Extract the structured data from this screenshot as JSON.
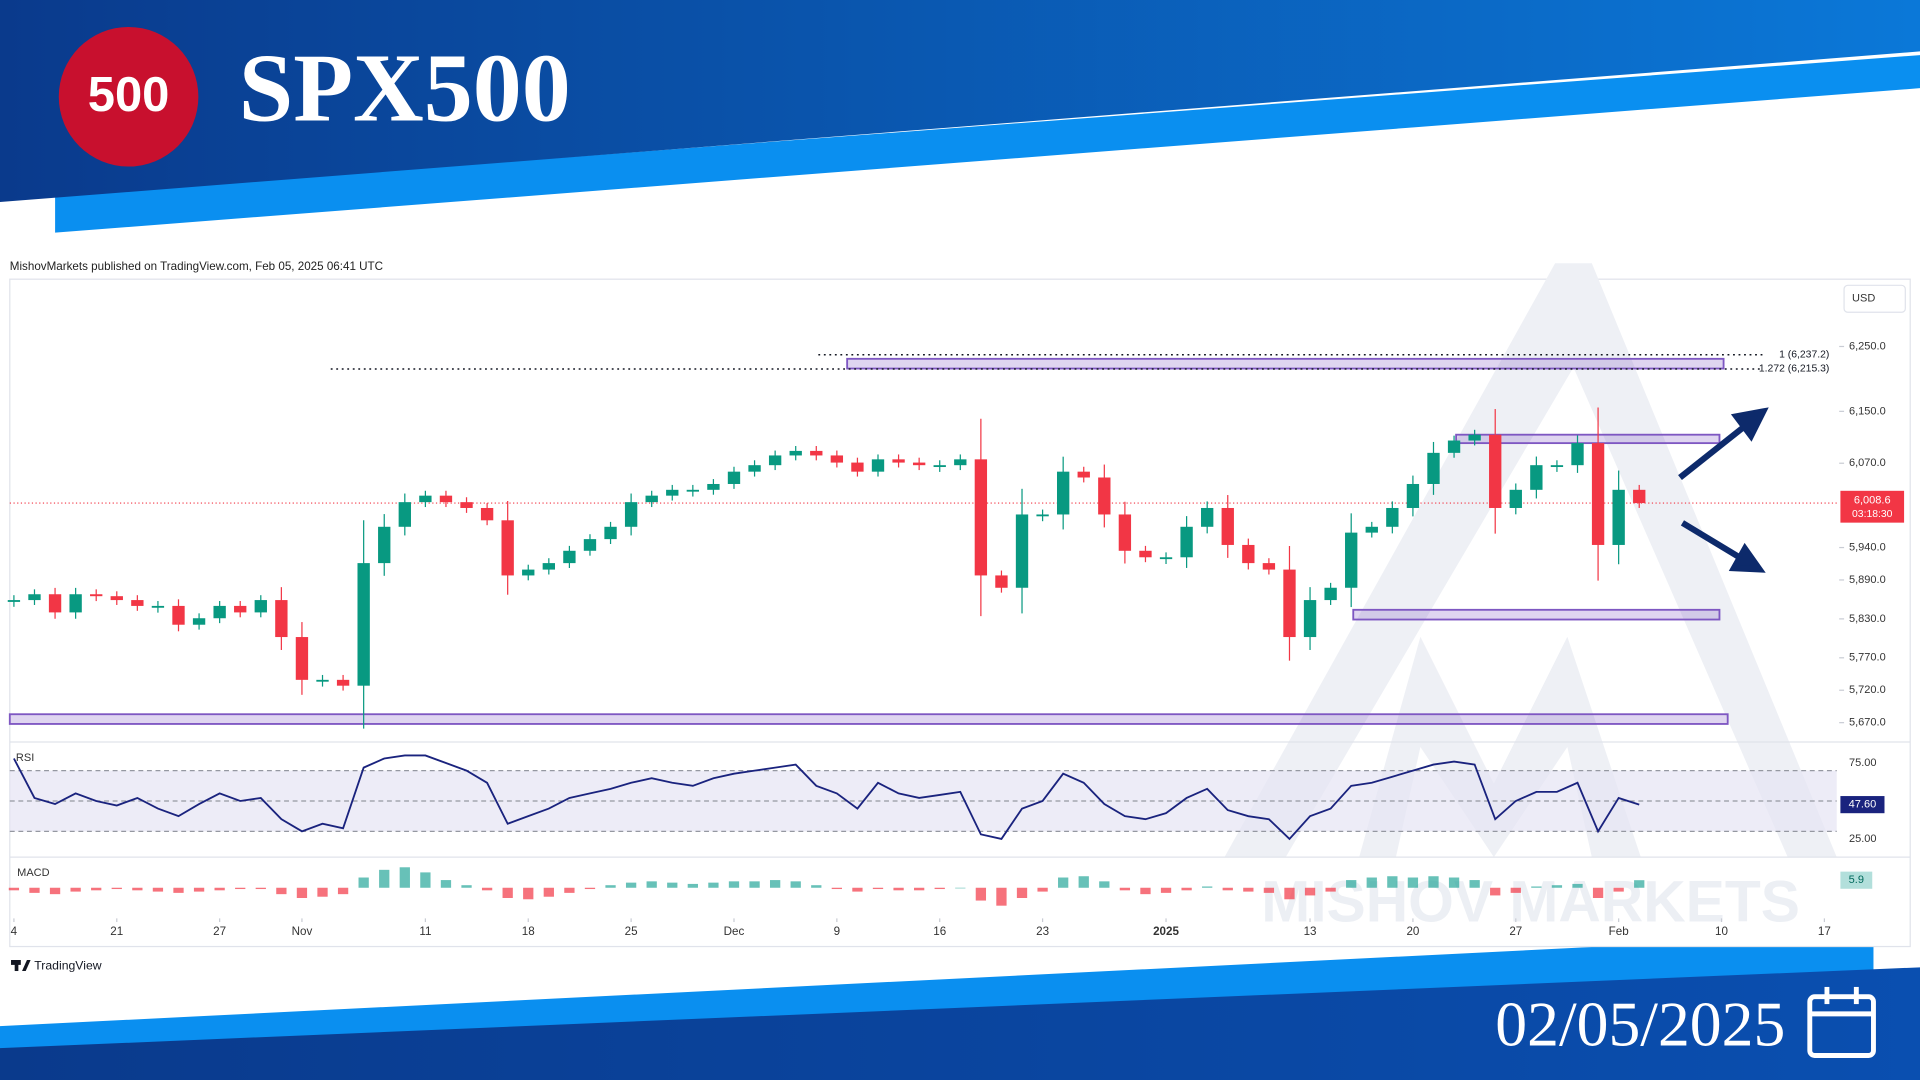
{
  "header": {
    "logo": "500",
    "title": "SPX500",
    "date": "02/05/2025"
  },
  "attribution": "MishovMarkets published on TradingView.com, Feb 05, 2025 06:41 UTC",
  "branding": "TradingView",
  "watermark": "MISHOV MARKETS",
  "chart_data": [
    {
      "type": "candlestick",
      "unit": "USD",
      "values": [
        5859,
        5868,
        5840,
        5868,
        5865,
        5859,
        5850,
        5850,
        5821,
        5831,
        5850,
        5840,
        5859,
        5802,
        5736,
        5736,
        5727,
        5916,
        5972,
        6010,
        6020,
        6010,
        6001,
        5982,
        5897,
        5906,
        5916,
        5935,
        5953,
        5972,
        6010,
        6020,
        6029,
        6029,
        6038,
        6057,
        6067,
        6082,
        6089,
        6082,
        6071,
        6057,
        6076,
        6071,
        6067,
        6067,
        6076,
        5897,
        5878,
        5991,
        5991,
        6057,
        6048,
        5991,
        5935,
        5925,
        5925,
        5972,
        6001,
        5944,
        5916,
        5906,
        5802,
        5859,
        5878,
        5963,
        5972,
        6001,
        6038,
        6086,
        6105,
        6114,
        6001,
        6029,
        6067,
        6067,
        6101,
        5944,
        6029,
        6008.6
      ],
      "last_value_label": "6,008.6",
      "countdown": "03:18:30",
      "colors": {
        "up": "#089981",
        "down": "#f23645"
      },
      "xlim": [
        -0.2,
        88.6
      ],
      "xticks": [
        {
          "value": 0,
          "label": "4"
        },
        {
          "value": 5,
          "label": "21"
        },
        {
          "value": 10,
          "label": "27"
        },
        {
          "value": 14,
          "label": "Nov"
        },
        {
          "value": 20,
          "label": "11"
        },
        {
          "value": 25,
          "label": "18"
        },
        {
          "value": 30,
          "label": "25"
        },
        {
          "value": 35,
          "label": "Dec"
        },
        {
          "value": 40,
          "label": "9"
        },
        {
          "value": 45,
          "label": "16"
        },
        {
          "value": 50,
          "label": "23"
        },
        {
          "value": 56,
          "label": "2025",
          "bold": true
        },
        {
          "value": 63,
          "label": "13"
        },
        {
          "value": 68,
          "label": "20"
        },
        {
          "value": 73,
          "label": "27"
        },
        {
          "value": 78,
          "label": "Feb"
        },
        {
          "value": 83,
          "label": "10"
        },
        {
          "value": 88,
          "label": "17"
        }
      ],
      "ylim": [
        5642,
        6350
      ],
      "yticks": [
        {
          "value": 6250,
          "label": "6,250.0"
        },
        {
          "value": 6150,
          "label": "6,150.0"
        },
        {
          "value": 6070,
          "label": "6,070.0"
        },
        {
          "value": 5940,
          "label": "5,940.0"
        },
        {
          "value": 5890,
          "label": "5,890.0"
        },
        {
          "value": 5830,
          "label": "5,830.0"
        },
        {
          "value": 5770,
          "label": "5,770.0"
        },
        {
          "value": 5720,
          "label": "5,720.0"
        },
        {
          "value": 5670,
          "label": "5,670.0"
        }
      ],
      "levels": [
        {
          "value": 6237.2,
          "label": "1 (6,237.2)",
          "from": 39.1
        },
        {
          "value": 6215.3,
          "label": "1.272 (6,215.3)",
          "from": 15.4
        }
      ],
      "zones": [
        {
          "from": 40.5,
          "to": 83.1,
          "low": 6216,
          "high": 6231
        },
        {
          "from": 70.1,
          "to": 82.9,
          "low": 6101,
          "high": 6114
        },
        {
          "from": 65.1,
          "to": 82.9,
          "low": 5829,
          "high": 5844
        },
        {
          "from": -0.2,
          "to": 83.3,
          "low": 5668,
          "high": 5683
        }
      ],
      "zone_color": "#7e57c2"
    },
    {
      "type": "line",
      "label": "RSI",
      "color": "#1a237e",
      "values": [
        78,
        52,
        48,
        55,
        50,
        47,
        52,
        45,
        40,
        48,
        55,
        50,
        52,
        38,
        30,
        35,
        32,
        72,
        78,
        80,
        80,
        75,
        70,
        62,
        35,
        40,
        45,
        52,
        55,
        58,
        62,
        65,
        62,
        60,
        65,
        68,
        70,
        72,
        74,
        60,
        55,
        45,
        62,
        55,
        52,
        54,
        56,
        28,
        25,
        45,
        50,
        68,
        62,
        48,
        40,
        38,
        42,
        52,
        58,
        44,
        40,
        38,
        25,
        40,
        45,
        60,
        62,
        66,
        70,
        74,
        76,
        74,
        38,
        50,
        56,
        56,
        62,
        30,
        52,
        47.6
      ],
      "last_value_label": "47.60",
      "ylim": [
        13,
        84
      ],
      "yticks": [
        {
          "value": 75,
          "label": "75.00"
        },
        {
          "value": 25,
          "label": "25.00"
        }
      ],
      "bands": [
        30,
        70
      ],
      "midline": 50,
      "band_color": "#e6e4f4"
    },
    {
      "type": "bar",
      "label": "MACD",
      "values": [
        -2,
        -4,
        -5,
        -3,
        -2,
        -1,
        -2,
        -3,
        -4,
        -3,
        -2,
        -1,
        -1,
        -5,
        -8,
        -7,
        -5,
        8,
        14,
        16,
        12,
        6,
        2,
        -2,
        -8,
        -9,
        -7,
        -4,
        -1,
        2,
        4,
        5,
        4,
        3,
        4,
        5,
        5,
        6,
        5,
        2,
        -1,
        -3,
        -1,
        -2,
        -2,
        -1,
        0,
        -10,
        -14,
        -8,
        -3,
        8,
        9,
        5,
        -2,
        -5,
        -4,
        -2,
        1,
        -2,
        -3,
        -4,
        -9,
        -6,
        -3,
        6,
        8,
        9,
        8,
        9,
        8,
        6,
        -6,
        -4,
        1,
        2,
        3,
        -8,
        -3,
        5.9
      ],
      "last_value_label": "5.9",
      "colors": {
        "positive": "#26a69a",
        "negative": "#f23645"
      },
      "ylim": [
        -22,
        22
      ]
    }
  ]
}
